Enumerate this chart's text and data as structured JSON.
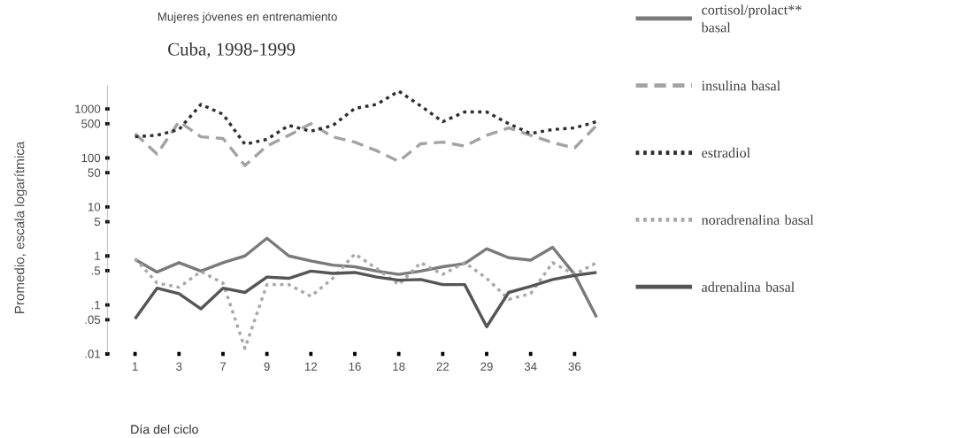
{
  "chart_data": {
    "type": "line",
    "title": "Mujeres jóvenes en entrenamiento",
    "subtitle": "Cuba, 1998-1999",
    "xlabel": "Día del ciclo",
    "ylabel": "Promedio, escala logarítmica",
    "categories": [
      "1",
      null,
      "3",
      null,
      "7",
      null,
      "9",
      null,
      "12",
      null,
      "16",
      null,
      "18",
      null,
      "22",
      null,
      "29",
      null,
      "34",
      null,
      "36",
      null
    ],
    "log": "y",
    "ylim": [
      0.01,
      3000
    ],
    "yticks": [
      {
        "value": 0.01,
        "label": ".01"
      },
      {
        "value": 0.05,
        "label": ".05"
      },
      {
        "value": 0.1,
        "label": ".1"
      },
      {
        "value": 0.5,
        "label": ".5"
      },
      1,
      5,
      10,
      50,
      100,
      500,
      1000
    ],
    "legend": "right",
    "series": [
      {
        "name": "cortisol/prolact** basal",
        "color": "#7a7a7a",
        "line_style": "solid",
        "values": [
          0.85,
          0.47,
          0.73,
          0.49,
          0.73,
          1.0,
          2.3,
          1.0,
          0.79,
          0.65,
          0.6,
          0.49,
          0.42,
          0.49,
          0.6,
          0.7,
          1.4,
          0.92,
          0.82,
          1.5,
          0.42,
          0.056
        ]
      },
      {
        "name": "insulina basal",
        "color": "#a3a3a3",
        "line_style": "dashed",
        "values": [
          315,
          120,
          550,
          270,
          250,
          70,
          175,
          290,
          500,
          270,
          210,
          140,
          85,
          195,
          210,
          175,
          290,
          410,
          290,
          205,
          160,
          460
        ]
      },
      {
        "name": "estradiol",
        "color": "#2e2e2e",
        "line_style": "dotted",
        "values": [
          270,
          290,
          380,
          1240,
          780,
          190,
          240,
          460,
          350,
          460,
          1020,
          1240,
          2300,
          1150,
          550,
          870,
          870,
          500,
          315,
          380,
          410,
          550
        ]
      },
      {
        "name": "noradrenalina basal",
        "color": "#a8a8a8",
        "line_style": "dotted",
        "values": [
          0.89,
          0.28,
          0.23,
          0.48,
          0.28,
          0.013,
          0.26,
          0.26,
          0.15,
          0.35,
          1.1,
          0.55,
          0.26,
          0.73,
          0.42,
          0.73,
          0.35,
          0.13,
          0.17,
          0.73,
          0.42,
          0.73
        ]
      },
      {
        "name": "adrenalina basal",
        "color": "#555555",
        "line_style": "solid",
        "values": [
          0.052,
          0.22,
          0.17,
          0.083,
          0.22,
          0.18,
          0.37,
          0.35,
          0.49,
          0.44,
          0.46,
          0.37,
          0.32,
          0.33,
          0.26,
          0.26,
          0.036,
          0.18,
          0.24,
          0.33,
          0.4,
          0.46
        ]
      }
    ]
  }
}
